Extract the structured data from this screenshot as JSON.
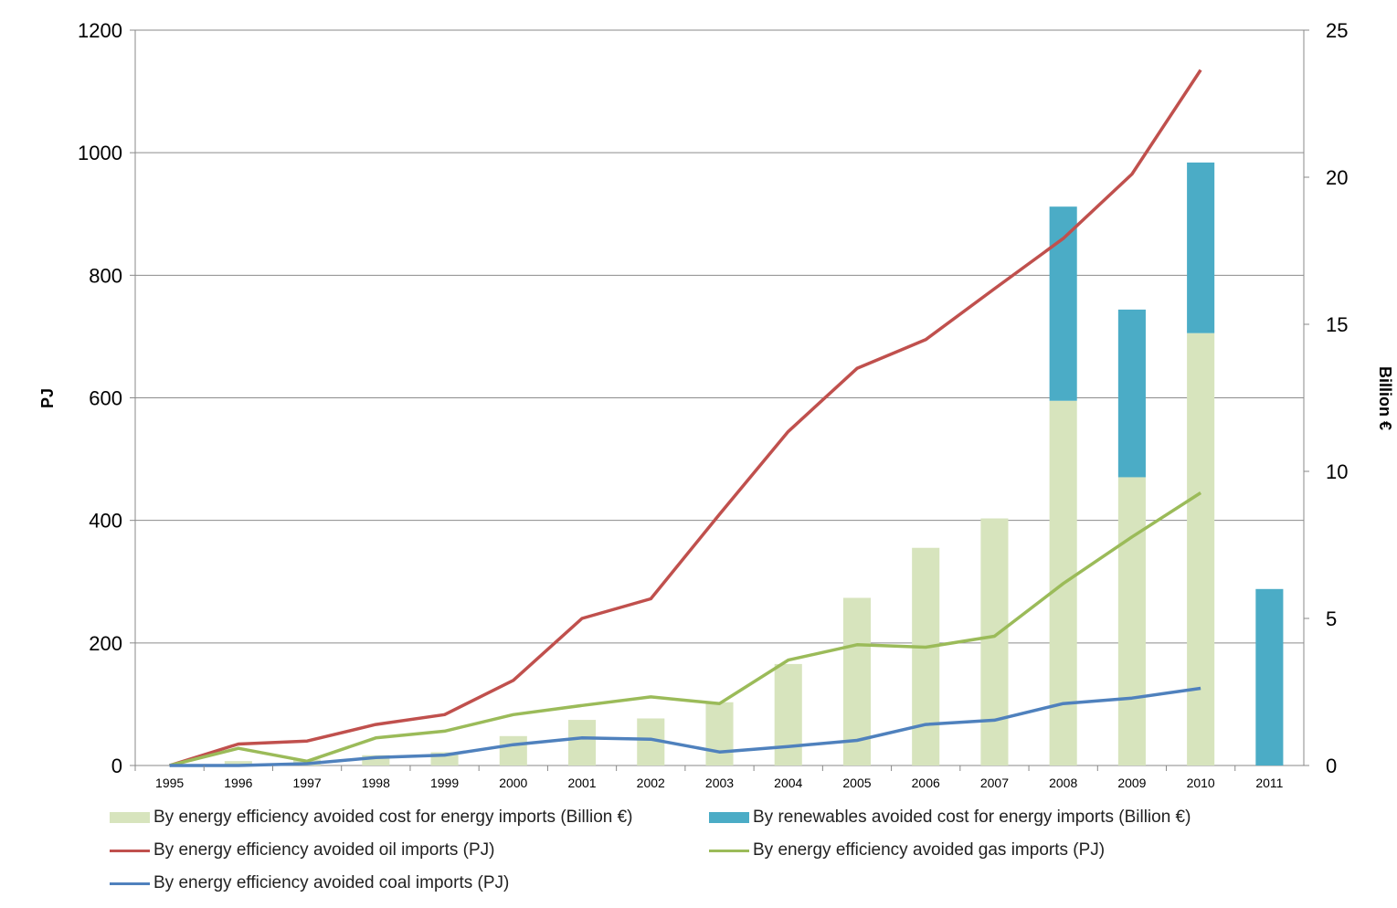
{
  "chart_data": {
    "type": "bar",
    "categories": [
      "1995",
      "1996",
      "1997",
      "1998",
      "1999",
      "2000",
      "2001",
      "2002",
      "2003",
      "2004",
      "2005",
      "2006",
      "2007",
      "2008",
      "2009",
      "2010",
      "2011"
    ],
    "ylabel": "PJ",
    "y2label": "Billion €",
    "ylim": [
      0,
      1200
    ],
    "y2lim": [
      0,
      25
    ],
    "yticks": [
      "0",
      "200",
      "400",
      "600",
      "800",
      "1000",
      "1200"
    ],
    "y2ticks": [
      "0",
      "5",
      "10",
      "15",
      "20",
      "25"
    ],
    "grid": true,
    "legend_position": "bottom",
    "bar_series": [
      {
        "name": "By energy efficiency avoided cost for energy imports (Billion €)",
        "axis": "right",
        "color": "#d7e4bd",
        "values": [
          0,
          0.15,
          0.2,
          0.35,
          0.45,
          1.0,
          1.55,
          1.6,
          2.15,
          3.45,
          5.7,
          7.4,
          8.4,
          12.4,
          9.8,
          14.7,
          0
        ]
      },
      {
        "name": "By renewables avoided cost for energy imports (Billion €)",
        "axis": "right",
        "color": "#4bacc6",
        "values": [
          0,
          0,
          0,
          0,
          0,
          0,
          0,
          0,
          0,
          0,
          0,
          0,
          0,
          6.6,
          5.7,
          5.8,
          6.0
        ]
      }
    ],
    "line_series": [
      {
        "name": "By energy efficiency avoided oil imports (PJ)",
        "axis": "left",
        "color": "#c0504d",
        "values": [
          0,
          35,
          40,
          67,
          83,
          139,
          240,
          272,
          410,
          545,
          648,
          695,
          778,
          860,
          965,
          1135,
          null
        ]
      },
      {
        "name": "By energy efficiency avoided gas imports (PJ)",
        "axis": "left",
        "color": "#9bbb59",
        "values": [
          0,
          28,
          7,
          45,
          56,
          83,
          98,
          112,
          101,
          172,
          197,
          193,
          211,
          297,
          373,
          445,
          null
        ]
      },
      {
        "name": "By energy efficiency avoided coal imports (PJ)",
        "axis": "left",
        "color": "#4f81bd",
        "values": [
          0,
          0,
          3,
          13,
          17,
          34,
          45,
          43,
          22,
          31,
          41,
          67,
          74,
          101,
          110,
          126,
          null
        ]
      }
    ]
  }
}
